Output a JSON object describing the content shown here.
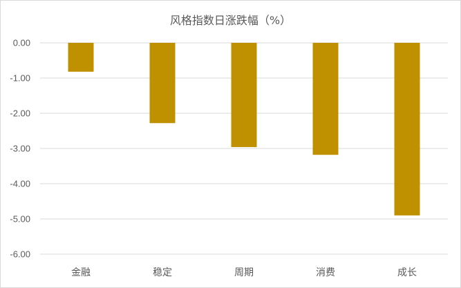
{
  "chart_data": {
    "type": "bar",
    "title": "风格指数日涨跌幅（%）",
    "categories": [
      "金融",
      "稳定",
      "周期",
      "消费",
      "成长"
    ],
    "values": [
      -0.82,
      -2.28,
      -2.96,
      -3.18,
      -4.9
    ],
    "ylim": [
      -6.0,
      0.0
    ],
    "yticks": [
      "0.00",
      "-1.00",
      "-2.00",
      "-3.00",
      "-4.00",
      "-5.00",
      "-6.00"
    ],
    "xlabel": "",
    "ylabel": "",
    "grid": true,
    "bar_color": "#bf9000",
    "legend": "none"
  }
}
